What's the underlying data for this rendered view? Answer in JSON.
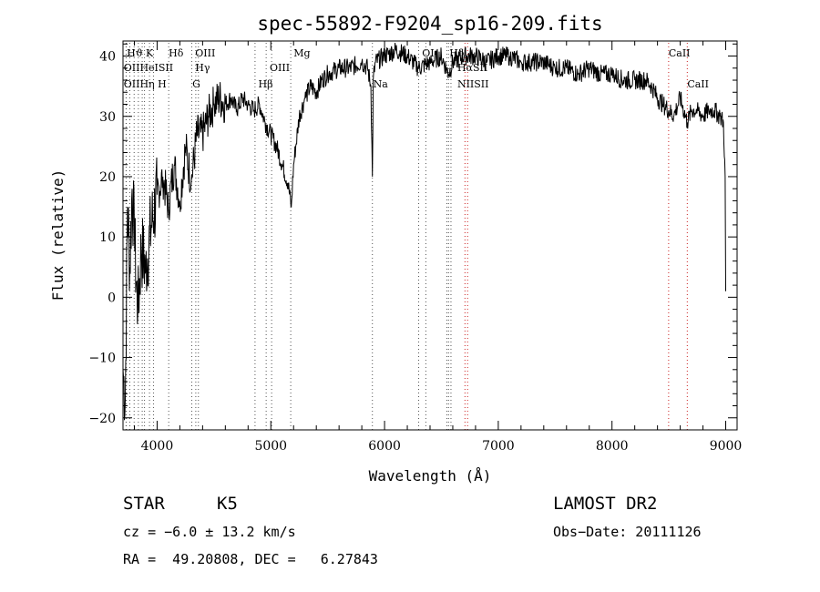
{
  "chart_data": {
    "type": "line",
    "title": "spec-55892-F9204_sp16-209.fits",
    "xlabel": "Wavelength (Å)",
    "ylabel": "Flux (relative)",
    "xlim": [
      3700,
      9100
    ],
    "ylim": [
      -22,
      42.5
    ],
    "x_ticks": [
      4000,
      5000,
      6000,
      7000,
      8000,
      9000
    ],
    "y_ticks": [
      -20,
      -10,
      0,
      10,
      20,
      30,
      40
    ],
    "grid": false,
    "line_color": "#000000",
    "series": [
      {
        "x": [
          3700,
          3720,
          3740,
          3760,
          3780,
          3800,
          3830,
          3860,
          3900,
          3950,
          4000,
          4050,
          4100,
          4150,
          4200,
          4250,
          4300,
          4350,
          4400,
          4450,
          4500,
          4550,
          4600,
          4650,
          4700,
          4750,
          4800,
          4850,
          4900,
          4950,
          5000,
          5050,
          5100,
          5150,
          5180,
          5200,
          5250,
          5300,
          5350,
          5400,
          5450,
          5500,
          5600,
          5700,
          5800,
          5850,
          5880,
          5893,
          5900,
          5920,
          6000,
          6100,
          6200,
          6300,
          6400,
          6500,
          6563,
          6600,
          6700,
          6800,
          6900,
          7000,
          7100,
          7200,
          7300,
          7400,
          7500,
          7600,
          7700,
          7800,
          7900,
          8000,
          8100,
          8200,
          8300,
          8350,
          8400,
          8450,
          8500,
          8542,
          8600,
          8662,
          8700,
          8750,
          8800,
          8850,
          8900,
          8950,
          8980,
          8995,
          9000
        ],
        "y": [
          -12,
          -17,
          15,
          5,
          18,
          10,
          -3,
          8,
          5,
          12,
          17,
          20,
          15,
          22,
          16,
          25,
          19,
          27,
          27,
          30,
          32,
          33,
          32,
          33,
          31,
          33,
          32,
          31,
          32,
          29,
          27,
          25,
          22,
          19,
          15,
          22,
          30,
          33,
          35,
          34,
          36,
          37,
          38,
          38,
          39,
          38,
          35,
          20,
          36,
          39,
          40,
          41,
          40,
          38,
          39,
          40,
          37,
          39,
          40,
          40,
          39,
          40,
          40,
          39,
          39,
          39,
          38,
          38,
          37,
          38,
          37,
          37,
          36,
          36,
          36,
          35,
          33,
          32,
          31,
          30,
          33,
          29,
          31,
          31,
          30,
          31,
          31,
          30,
          29,
          20,
          1
        ]
      }
    ],
    "lines_red": [
      {
        "label": "CaII",
        "x": 8498,
        "row": 1
      },
      {
        "label": "CaII",
        "x": 8662,
        "row": 3
      },
      {
        "label": "",
        "x": 6707
      },
      {
        "label": "",
        "x": 6730
      }
    ],
    "lines_gray": [
      {
        "label": "Hϑ K",
        "x": 3835,
        "row": 1,
        "anchor": 3733
      },
      {
        "label": "OIIHeISII",
        "x": 3727,
        "row": 2,
        "anchor": 3706
      },
      {
        "label": "OIIHη H",
        "x": 3729,
        "row": 3,
        "anchor": 3706
      },
      {
        "label": "",
        "x": 3760
      },
      {
        "label": "",
        "x": 3798
      },
      {
        "label": "",
        "x": 3869
      },
      {
        "label": "",
        "x": 3889
      },
      {
        "label": "",
        "x": 3933
      },
      {
        "label": "",
        "x": 3968
      },
      {
        "label": "Hδ",
        "x": 4102,
        "row": 1,
        "anchor": 4102
      },
      {
        "label": "OIII",
        "x": 4340,
        "row": 1,
        "anchor": 4335
      },
      {
        "label": "Hγ",
        "x": 4363,
        "row": 2,
        "anchor": 4335
      },
      {
        "label": "G",
        "x": 4305,
        "row": 3,
        "anchor": 4310
      },
      {
        "label": "Hβ",
        "x": 4861,
        "row": 3,
        "anchor": 4890
      },
      {
        "label": "OIII",
        "x": 4959,
        "row": 2,
        "anchor": 4990
      },
      {
        "label": "",
        "x": 5007
      },
      {
        "label": "Mg",
        "x": 5175,
        "row": 1,
        "anchor": 5200
      },
      {
        "label": "Na",
        "x": 5893,
        "row": 3,
        "anchor": 5900
      },
      {
        "label": "OI",
        "x": 6300,
        "row": 1,
        "anchor": 6330
      },
      {
        "label": "",
        "x": 6363
      },
      {
        "label": "Hδ",
        "x": 6548,
        "row": 1,
        "anchor": 6570
      },
      {
        "label": "HαSII",
        "x": 6563,
        "row": 2,
        "anchor": 6640
      },
      {
        "label": "NIISII",
        "x": 6584,
        "row": 3,
        "anchor": 6640
      }
    ]
  },
  "info": {
    "object_class": "STAR",
    "subclass": "K5",
    "survey": "LAMOST DR2",
    "redshift": "cz = −6.0 ± 13.2 km/s",
    "obs_date": "Obs−Date: 20111126",
    "coords": "RA =  49.20808, DEC =   6.27843"
  }
}
